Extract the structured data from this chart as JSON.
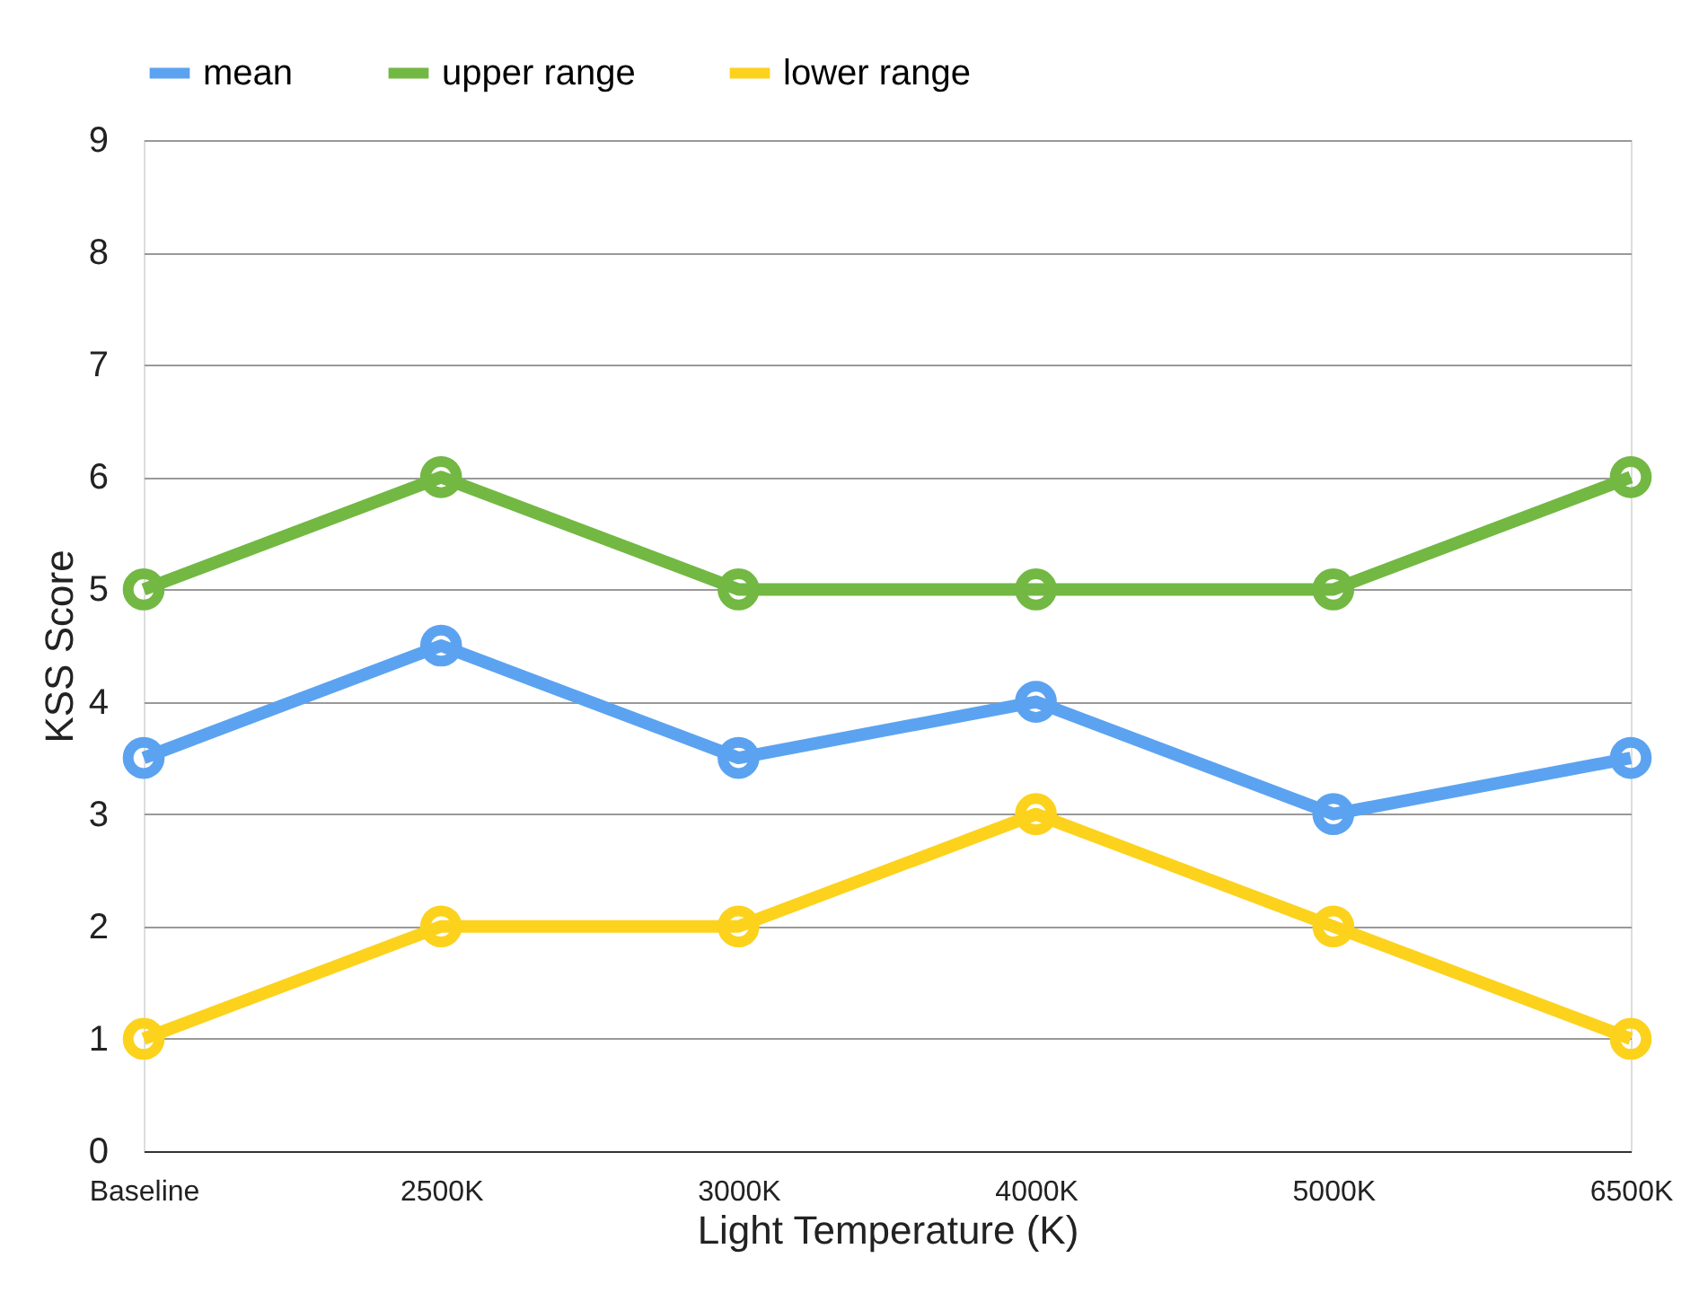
{
  "chart_data": {
    "type": "line",
    "xlabel": "Light Temperature (K)",
    "ylabel": "KSS Score",
    "categories": [
      "Baseline",
      "2500K",
      "3000K",
      "4000K",
      "5000K",
      "6500K"
    ],
    "series": [
      {
        "name": "mean",
        "color": "#5ba3f0",
        "values": [
          3.5,
          4.5,
          3.5,
          4,
          3,
          3.5
        ]
      },
      {
        "name": "upper range",
        "color": "#72b843",
        "values": [
          5,
          6,
          5,
          5,
          5,
          6
        ]
      },
      {
        "name": "lower range",
        "color": "#fcd21c",
        "values": [
          1,
          2,
          2,
          3,
          2,
          1
        ]
      }
    ],
    "ylim": [
      0,
      9
    ],
    "yticks": [
      0,
      1,
      2,
      3,
      4,
      5,
      6,
      7,
      8,
      9
    ],
    "grid": "y",
    "legend": "top",
    "marker": "circle",
    "line_style": "solid"
  }
}
